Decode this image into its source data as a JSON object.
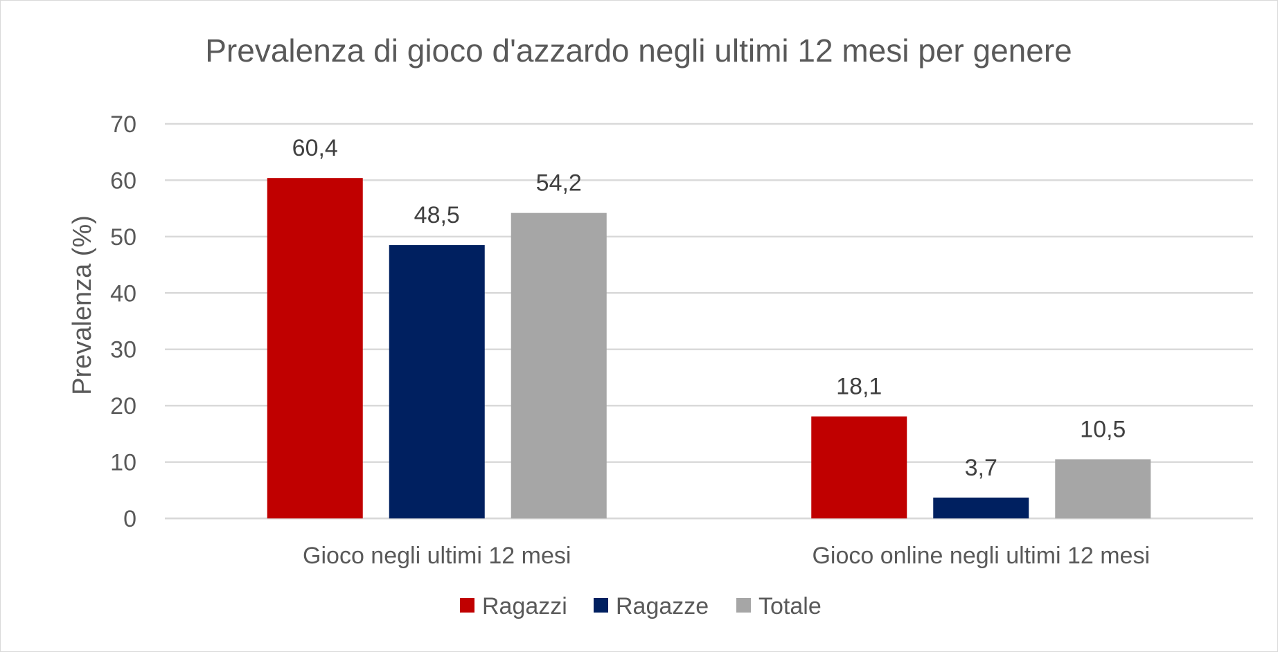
{
  "chart_data": {
    "type": "bar",
    "title": "Prevalenza di gioco d'azzardo negli ultimi 12 mesi per genere",
    "xlabel": "",
    "ylabel": "Prevalenza (%)",
    "ylim": [
      0,
      70
    ],
    "yticks": [
      "0",
      "10",
      "20",
      "30",
      "40",
      "50",
      "60",
      "70"
    ],
    "grid": true,
    "legend_position": "bottom",
    "categories": [
      "Gioco negli ultimi 12 mesi",
      "Gioco online negli ultimi 12 mesi"
    ],
    "series": [
      {
        "name": "Ragazzi",
        "color": "#c00000",
        "values": [
          60.4,
          18.1
        ],
        "labels": [
          "60,4",
          "18,1"
        ]
      },
      {
        "name": "Ragazze",
        "color": "#002060",
        "values": [
          48.5,
          3.7
        ],
        "labels": [
          "48,5",
          "3,7"
        ]
      },
      {
        "name": "Totale",
        "color": "#a6a6a6",
        "values": [
          54.2,
          10.5
        ],
        "labels": [
          "54,2",
          "10,5"
        ]
      }
    ]
  }
}
